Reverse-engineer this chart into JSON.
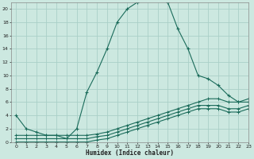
{
  "xlabel": "Humidex (Indice chaleur)",
  "bg_color": "#cce8e0",
  "grid_color": "#aacfc7",
  "line_color": "#1a6b5a",
  "xlim": [
    -0.5,
    23
  ],
  "ylim": [
    0,
    21
  ],
  "xticks": [
    0,
    1,
    2,
    3,
    4,
    5,
    6,
    7,
    8,
    9,
    10,
    11,
    12,
    13,
    14,
    15,
    16,
    17,
    18,
    19,
    20,
    21,
    22,
    23
  ],
  "yticks": [
    0,
    2,
    4,
    6,
    8,
    10,
    12,
    14,
    16,
    18,
    20
  ],
  "curve1_x": [
    0,
    1,
    2,
    3,
    4,
    5,
    6,
    7,
    8,
    9,
    10,
    11,
    12,
    13,
    14,
    15,
    16,
    17,
    18,
    19,
    20,
    21,
    22,
    23
  ],
  "curve1_y": [
    4,
    2,
    1.5,
    1,
    1,
    0.5,
    2,
    7.5,
    10.5,
    14,
    18,
    20,
    21,
    21.5,
    21.5,
    21,
    17,
    14,
    10,
    9.5,
    8.5,
    7,
    6,
    6
  ],
  "curve2_x": [
    0,
    1,
    2,
    3,
    4,
    5,
    6,
    7,
    8,
    9,
    10,
    11,
    12,
    13,
    14,
    15,
    16,
    17,
    18,
    19,
    20,
    21,
    22,
    23
  ],
  "curve2_y": [
    1,
    1,
    1,
    1,
    1,
    1,
    1,
    1,
    1.2,
    1.5,
    2,
    2.5,
    3,
    3.5,
    4,
    4.5,
    5,
    5.5,
    6,
    6.5,
    6.5,
    6,
    6,
    6.5
  ],
  "curve3_x": [
    0,
    1,
    2,
    3,
    4,
    5,
    6,
    7,
    8,
    9,
    10,
    11,
    12,
    13,
    14,
    15,
    16,
    17,
    18,
    19,
    20,
    21,
    22,
    23
  ],
  "curve3_y": [
    0.5,
    0.5,
    0.5,
    0.5,
    0.5,
    0.5,
    0.5,
    0.5,
    0.8,
    1,
    1.5,
    2,
    2.5,
    3,
    3.5,
    4,
    4.5,
    5,
    5.5,
    5.5,
    5.5,
    5,
    5,
    5.5
  ],
  "curve4_x": [
    0,
    1,
    2,
    3,
    4,
    5,
    6,
    7,
    8,
    9,
    10,
    11,
    12,
    13,
    14,
    15,
    16,
    17,
    18,
    19,
    20,
    21,
    22,
    23
  ],
  "curve4_y": [
    0,
    0,
    0,
    0,
    0,
    0,
    0,
    0,
    0.3,
    0.5,
    1,
    1.5,
    2,
    2.5,
    3,
    3.5,
    4,
    4.5,
    5,
    5,
    5,
    4.5,
    4.5,
    5
  ]
}
